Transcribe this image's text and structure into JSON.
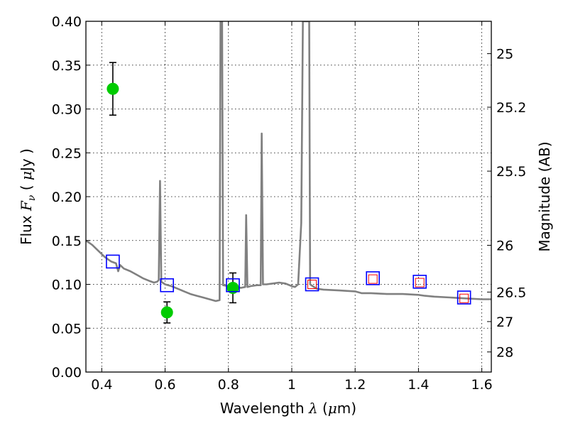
{
  "chart_data": {
    "type": "scatter",
    "title": "",
    "xlabel": "Wavelength",
    "xlabel_symbol": "λ",
    "xlabel_unit_open": "(",
    "xlabel_unit_symbol": "μ",
    "xlabel_unit_rest": "m)",
    "ylabel": "Flux",
    "ylabel_symbol": "F",
    "ylabel_subscript": "ν",
    "ylabel_unit_open": "(",
    "ylabel_unit_symbol": "μ",
    "ylabel_unit_rest": "Jy )",
    "y2label": "Magnitude (AB)",
    "xlim": [
      0.35,
      1.63
    ],
    "ylim": [
      0.0,
      0.4
    ],
    "grid": true,
    "x_ticks": [
      {
        "value": 0.4,
        "label": "0.4"
      },
      {
        "value": 0.6,
        "label": "0.6"
      },
      {
        "value": 0.8,
        "label": "0.8"
      },
      {
        "value": 1.0,
        "label": "1"
      },
      {
        "value": 1.2,
        "label": "1.2"
      },
      {
        "value": 1.4,
        "label": "1.4"
      },
      {
        "value": 1.6,
        "label": "1.6"
      }
    ],
    "y_ticks": [
      {
        "value": 0.0,
        "label": "0.00"
      },
      {
        "value": 0.05,
        "label": "0.05"
      },
      {
        "value": 0.1,
        "label": "0.10"
      },
      {
        "value": 0.15,
        "label": "0.15"
      },
      {
        "value": 0.2,
        "label": "0.20"
      },
      {
        "value": 0.25,
        "label": "0.25"
      },
      {
        "value": 0.3,
        "label": "0.30"
      },
      {
        "value": 0.35,
        "label": "0.35"
      },
      {
        "value": 0.4,
        "label": "0.40"
      }
    ],
    "y2_ticks": [
      {
        "mag": 25,
        "label": "25"
      },
      {
        "mag": 25.2,
        "label": "25.2"
      },
      {
        "mag": 25.5,
        "label": "25.5"
      },
      {
        "mag": 26,
        "label": "26"
      },
      {
        "mag": 26.5,
        "label": "26.5"
      },
      {
        "mag": 27,
        "label": "27"
      },
      {
        "mag": 28,
        "label": "28"
      }
    ],
    "series": [
      {
        "kind": "line",
        "color": "#808080",
        "points": [
          [
            0.35,
            0.15
          ],
          [
            0.37,
            0.145
          ],
          [
            0.39,
            0.138
          ],
          [
            0.41,
            0.131
          ],
          [
            0.43,
            0.126
          ],
          [
            0.445,
            0.124
          ],
          [
            0.452,
            0.115
          ],
          [
            0.458,
            0.122
          ],
          [
            0.47,
            0.118
          ],
          [
            0.49,
            0.115
          ],
          [
            0.51,
            0.111
          ],
          [
            0.53,
            0.107
          ],
          [
            0.55,
            0.104
          ],
          [
            0.565,
            0.102
          ],
          [
            0.575,
            0.103
          ],
          [
            0.58,
            0.105
          ],
          [
            0.584,
            0.218
          ],
          [
            0.588,
            0.103
          ],
          [
            0.6,
            0.1
          ],
          [
            0.62,
            0.098
          ],
          [
            0.64,
            0.095
          ],
          [
            0.66,
            0.092
          ],
          [
            0.68,
            0.089
          ],
          [
            0.7,
            0.087
          ],
          [
            0.72,
            0.085
          ],
          [
            0.74,
            0.083
          ],
          [
            0.76,
            0.081
          ],
          [
            0.772,
            0.082
          ],
          [
            0.775,
            0.4
          ],
          [
            0.78,
            0.4
          ],
          [
            0.783,
            0.099
          ],
          [
            0.8,
            0.098
          ],
          [
            0.82,
            0.097
          ],
          [
            0.84,
            0.096
          ],
          [
            0.853,
            0.097
          ],
          [
            0.856,
            0.179
          ],
          [
            0.86,
            0.097
          ],
          [
            0.87,
            0.098
          ],
          [
            0.89,
            0.099
          ],
          [
            0.902,
            0.099
          ],
          [
            0.905,
            0.272
          ],
          [
            0.909,
            0.1
          ],
          [
            0.92,
            0.1
          ],
          [
            0.94,
            0.101
          ],
          [
            0.96,
            0.102
          ],
          [
            0.98,
            0.101
          ],
          [
            1.0,
            0.098
          ],
          [
            1.01,
            0.097
          ],
          [
            1.02,
            0.1
          ],
          [
            1.03,
            0.17
          ],
          [
            1.035,
            0.4
          ],
          [
            1.055,
            0.4
          ],
          [
            1.058,
            0.1
          ],
          [
            1.07,
            0.097
          ],
          [
            1.08,
            0.095
          ],
          [
            1.1,
            0.094
          ],
          [
            1.15,
            0.093
          ],
          [
            1.2,
            0.092
          ],
          [
            1.22,
            0.09
          ],
          [
            1.25,
            0.09
          ],
          [
            1.3,
            0.089
          ],
          [
            1.35,
            0.089
          ],
          [
            1.4,
            0.088
          ],
          [
            1.42,
            0.087
          ],
          [
            1.45,
            0.086
          ],
          [
            1.5,
            0.085
          ],
          [
            1.55,
            0.084
          ],
          [
            1.6,
            0.083
          ],
          [
            1.63,
            0.083
          ]
        ]
      },
      {
        "kind": "detection",
        "marker": "circle",
        "color": "#00cc00",
        "points": [
          {
            "x": 0.435,
            "y": 0.323,
            "err_low": 0.293,
            "err_high": 0.353
          },
          {
            "x": 0.606,
            "y": 0.068,
            "err_low": 0.056,
            "err_high": 0.08
          },
          {
            "x": 0.814,
            "y": 0.096,
            "err_low": 0.079,
            "err_high": 0.113
          }
        ]
      },
      {
        "kind": "model_band",
        "marker": "square",
        "color": "#0000ff",
        "points": [
          {
            "x": 0.435,
            "y": 0.126
          },
          {
            "x": 0.606,
            "y": 0.099
          },
          {
            "x": 0.814,
            "y": 0.099
          },
          {
            "x": 1.064,
            "y": 0.1
          },
          {
            "x": 1.256,
            "y": 0.107
          },
          {
            "x": 1.404,
            "y": 0.103
          },
          {
            "x": 1.544,
            "y": 0.085
          }
        ]
      },
      {
        "kind": "model_band_small",
        "marker": "square",
        "color": "#ff0000",
        "points": [
          {
            "x": 1.064,
            "y": 0.1
          },
          {
            "x": 1.256,
            "y": 0.106
          },
          {
            "x": 1.404,
            "y": 0.102
          },
          {
            "x": 1.544,
            "y": 0.084
          }
        ]
      }
    ]
  }
}
